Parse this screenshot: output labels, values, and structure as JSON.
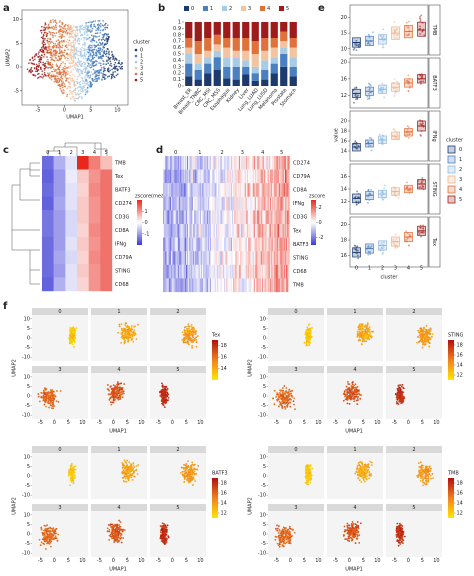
{
  "chart_data": [
    {
      "panel": "a",
      "type": "scatter",
      "x_label": "UMAP1",
      "y_label": "UMAP2",
      "xlim": [
        -8,
        12
      ],
      "xticks": [
        -5,
        0,
        5,
        10
      ],
      "ylim": [
        -8,
        12
      ],
      "yticks": [
        -5,
        0,
        5,
        10
      ],
      "legend_title": "cluster",
      "clusters": [
        {
          "name": "0",
          "color": "#1d3a6e"
        },
        {
          "name": "1",
          "color": "#4a7fc1"
        },
        {
          "name": "2",
          "color": "#a8cbe6"
        },
        {
          "name": "3",
          "color": "#f4c3a0"
        },
        {
          "name": "4",
          "color": "#e0713a"
        },
        {
          "name": "5",
          "color": "#9e1b1b"
        }
      ]
    },
    {
      "panel": "b",
      "type": "stacked_bar",
      "categories": [
        "Breast_ER",
        "Breast_TNBC",
        "CRC_MSI",
        "CRC_MSS",
        "Esophagus",
        "Kidney",
        "Liver",
        "Lung_LUAD",
        "Lung_LUSD",
        "Melanoma",
        "Prostate",
        "Stomach"
      ],
      "ylim": [
        0,
        1
      ],
      "yticks": [
        0,
        0.1,
        0.2,
        0.3,
        0.4,
        0.5,
        0.6,
        0.7,
        0.8,
        0.9,
        1
      ],
      "series": [
        {
          "name": "0",
          "color": "#1d3a6e",
          "values": [
            0.15,
            0.1,
            0.2,
            0.25,
            0.12,
            0.1,
            0.18,
            0.08,
            0.1,
            0.2,
            0.3,
            0.15
          ]
        },
        {
          "name": "1",
          "color": "#4a7fc1",
          "values": [
            0.2,
            0.15,
            0.15,
            0.2,
            0.18,
            0.2,
            0.12,
            0.12,
            0.15,
            0.15,
            0.2,
            0.15
          ]
        },
        {
          "name": "2",
          "color": "#a8cbe6",
          "values": [
            0.15,
            0.1,
            0.1,
            0.1,
            0.15,
            0.15,
            0.1,
            0.1,
            0.15,
            0.1,
            0.1,
            0.15
          ]
        },
        {
          "name": "3",
          "color": "#f4c3a0",
          "values": [
            0.1,
            0.15,
            0.1,
            0.1,
            0.15,
            0.1,
            0.15,
            0.2,
            0.15,
            0.15,
            0.1,
            0.15
          ]
        },
        {
          "name": "4",
          "color": "#e0713a",
          "values": [
            0.15,
            0.2,
            0.2,
            0.15,
            0.15,
            0.2,
            0.2,
            0.2,
            0.2,
            0.15,
            0.15,
            0.15
          ]
        },
        {
          "name": "5",
          "color": "#9e1b1b",
          "values": [
            0.25,
            0.3,
            0.25,
            0.2,
            0.25,
            0.25,
            0.25,
            0.3,
            0.25,
            0.25,
            0.15,
            0.25
          ]
        }
      ]
    },
    {
      "panel": "c",
      "type": "heatmap",
      "columns": [
        "0",
        "1",
        "2",
        "3",
        "4",
        "5"
      ],
      "rows": [
        "TMB",
        "Tex",
        "BATF3",
        "CD274",
        "CD3G",
        "CD8A",
        "IFNg",
        "CD79A",
        "STING",
        "CD68"
      ],
      "values": [
        [
          -1.5,
          -0.8,
          -0.3,
          2.0,
          1.2,
          0.6
        ],
        [
          -1.6,
          -1.0,
          -0.2,
          0.5,
          1.0,
          1.3
        ],
        [
          -1.5,
          -1.0,
          -0.3,
          0.4,
          1.1,
          1.3
        ],
        [
          -1.6,
          -0.9,
          -0.3,
          0.5,
          1.0,
          1.3
        ],
        [
          -1.4,
          -1.0,
          -0.4,
          0.5,
          1.0,
          1.3
        ],
        [
          -1.4,
          -1.0,
          -0.4,
          0.4,
          1.1,
          1.3
        ],
        [
          -1.5,
          -1.0,
          -0.3,
          0.5,
          1.0,
          1.3
        ],
        [
          -1.5,
          -0.9,
          -0.4,
          0.4,
          1.1,
          1.3
        ],
        [
          -1.5,
          -1.0,
          -0.3,
          0.5,
          1.0,
          1.3
        ],
        [
          -1.6,
          -0.8,
          -0.3,
          0.4,
          1.0,
          1.3
        ]
      ],
      "legend_title": "zscore(means)",
      "clim": [
        -2,
        2
      ],
      "cticks": [
        -1,
        0,
        1
      ]
    },
    {
      "panel": "d",
      "type": "cell_heatmap",
      "columns": [
        "0",
        "1",
        "2",
        "3",
        "4",
        "5"
      ],
      "rows": [
        "CD274",
        "CD79A",
        "CD8A",
        "IFNg",
        "CD3G",
        "Tex",
        "BATF3",
        "STING",
        "CD68",
        "TMB"
      ],
      "legend_title": "zscore",
      "clim": [
        -3,
        3
      ],
      "cticks": [
        -2,
        0,
        2
      ]
    },
    {
      "panel": "e",
      "type": "box",
      "categories": [
        "0",
        "1",
        "2",
        "3",
        "4",
        "5"
      ],
      "x_label": "cluster",
      "y_label": "value",
      "legend_title": "cluster",
      "series": [
        {
          "name": "0",
          "color": "#1d3a6e"
        },
        {
          "name": "1",
          "color": "#4a7fc1"
        },
        {
          "name": "2",
          "color": "#8fb9de"
        },
        {
          "name": "3",
          "color": "#eeb48c"
        },
        {
          "name": "4",
          "color": "#e0713a"
        },
        {
          "name": "5",
          "color": "#9e1b1b"
        }
      ],
      "panels": [
        {
          "name": "TMB",
          "ylim": [
            8,
            24
          ],
          "yticks": [
            10,
            15,
            20
          ],
          "boxes": [
            [
              10.5,
              12,
              13.5
            ],
            [
              11,
              12.5,
              14
            ],
            [
              11.5,
              13,
              14.5
            ],
            [
              13,
              15,
              17
            ],
            [
              13.5,
              15.5,
              17.5
            ],
            [
              14,
              16,
              18.5
            ]
          ]
        },
        {
          "name": "BATF3",
          "ylim": [
            9,
            21
          ],
          "yticks": [
            12,
            16,
            20
          ],
          "boxes": [
            [
              11.5,
              12.5,
              13.5
            ],
            [
              12,
              13,
              14
            ],
            [
              12.5,
              13.5,
              14.5
            ],
            [
              13,
              14,
              15
            ],
            [
              14,
              15,
              16
            ],
            [
              15,
              16,
              17
            ]
          ]
        },
        {
          "name": "IFNg",
          "ylim": [
            12,
            22
          ],
          "yticks": [
            14,
            16,
            18,
            20
          ],
          "boxes": [
            [
              14,
              14.8,
              15.5
            ],
            [
              14.8,
              15.5,
              16.2
            ],
            [
              15.5,
              16.2,
              17
            ],
            [
              16.3,
              17,
              17.8
            ],
            [
              17,
              17.8,
              18.5
            ],
            [
              18,
              19,
              20
            ]
          ]
        },
        {
          "name": "STING",
          "ylim": [
            10,
            18
          ],
          "yticks": [
            12,
            14,
            16
          ],
          "boxes": [
            [
              11.8,
              12.5,
              13.2
            ],
            [
              12.3,
              13,
              13.6
            ],
            [
              12.6,
              13.2,
              13.8
            ],
            [
              13,
              13.6,
              14.2
            ],
            [
              13.4,
              14,
              14.6
            ],
            [
              14,
              14.8,
              15.5
            ]
          ]
        },
        {
          "name": "Tex",
          "ylim": [
            14.5,
            21
          ],
          "yticks": [
            16,
            18,
            20
          ],
          "boxes": [
            [
              15.8,
              16.4,
              17
            ],
            [
              16.3,
              16.9,
              17.5
            ],
            [
              16.7,
              17.3,
              17.9
            ],
            [
              17.2,
              17.8,
              18.4
            ],
            [
              17.8,
              18.4,
              19
            ],
            [
              18.6,
              19.2,
              19.8
            ]
          ]
        }
      ]
    },
    {
      "panel": "f",
      "type": "facet_scatter",
      "facets": [
        "0",
        "1",
        "2",
        "3",
        "4",
        "5"
      ],
      "x_label": "UMAP1",
      "y_label": "UMAP2",
      "xlim": [
        -8,
        12
      ],
      "xticks": [
        -5,
        0,
        5,
        10
      ],
      "ylim": [
        -12,
        12
      ],
      "yticks": [
        -10,
        -5,
        0,
        5,
        10
      ],
      "plots": [
        {
          "name": "Tex",
          "clim": [
            12,
            19
          ],
          "cticks": [
            14,
            16,
            18
          ]
        },
        {
          "name": "STING",
          "clim": [
            11,
            19
          ],
          "cticks": [
            12,
            14,
            16,
            18
          ]
        },
        {
          "name": "BATF3",
          "clim": [
            11,
            19
          ],
          "cticks": [
            12,
            14,
            16,
            18
          ]
        },
        {
          "name": "TMB",
          "clim": [
            11,
            19
          ],
          "cticks": [
            12,
            14,
            16,
            18
          ]
        }
      ]
    }
  ]
}
